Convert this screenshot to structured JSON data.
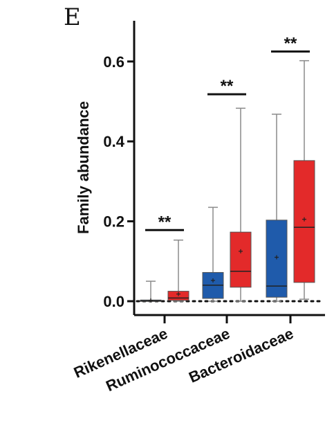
{
  "panel_label": "E",
  "chart_data": {
    "type": "box",
    "title": "",
    "xlabel": "",
    "ylabel": "Family abundance",
    "ylim": [
      0,
      0.7
    ],
    "yticks": [
      0.0,
      0.2,
      0.4,
      0.6
    ],
    "ytick_labels": [
      "0.0",
      "0.2",
      "0.4",
      "0.6"
    ],
    "baseline_style": "dotted",
    "categories": [
      "Rikenellaceae",
      "Ruminococcaceae",
      "Bacteroidaceae"
    ],
    "series": [
      {
        "color": "#1f5bab",
        "boxes": [
          {
            "min": 0.0,
            "q1": 0.0,
            "median": 0.001,
            "q3": 0.003,
            "max": 0.05,
            "mean": 0.002
          },
          {
            "min": 0.0,
            "q1": 0.007,
            "median": 0.04,
            "q3": 0.072,
            "max": 0.235,
            "mean": 0.052
          },
          {
            "min": 0.0,
            "q1": 0.01,
            "median": 0.038,
            "q3": 0.203,
            "max": 0.468,
            "mean": 0.11
          }
        ]
      },
      {
        "color": "#e32a2a",
        "boxes": [
          {
            "min": 0.0,
            "q1": 0.002,
            "median": 0.008,
            "q3": 0.025,
            "max": 0.153,
            "mean": 0.018
          },
          {
            "min": 0.0,
            "q1": 0.035,
            "median": 0.075,
            "q3": 0.173,
            "max": 0.483,
            "mean": 0.125
          },
          {
            "min": 0.005,
            "q1": 0.047,
            "median": 0.185,
            "q3": 0.352,
            "max": 0.602,
            "mean": 0.205
          }
        ]
      }
    ],
    "annotations": [
      {
        "category": "Rikenellaceae",
        "text": "**",
        "y": 0.178
      },
      {
        "category": "Ruminococcaceae",
        "text": "**",
        "y": 0.518
      },
      {
        "category": "Bacteroidaceae",
        "text": "**",
        "y": 0.625
      }
    ],
    "grid": false,
    "legend": "none"
  }
}
